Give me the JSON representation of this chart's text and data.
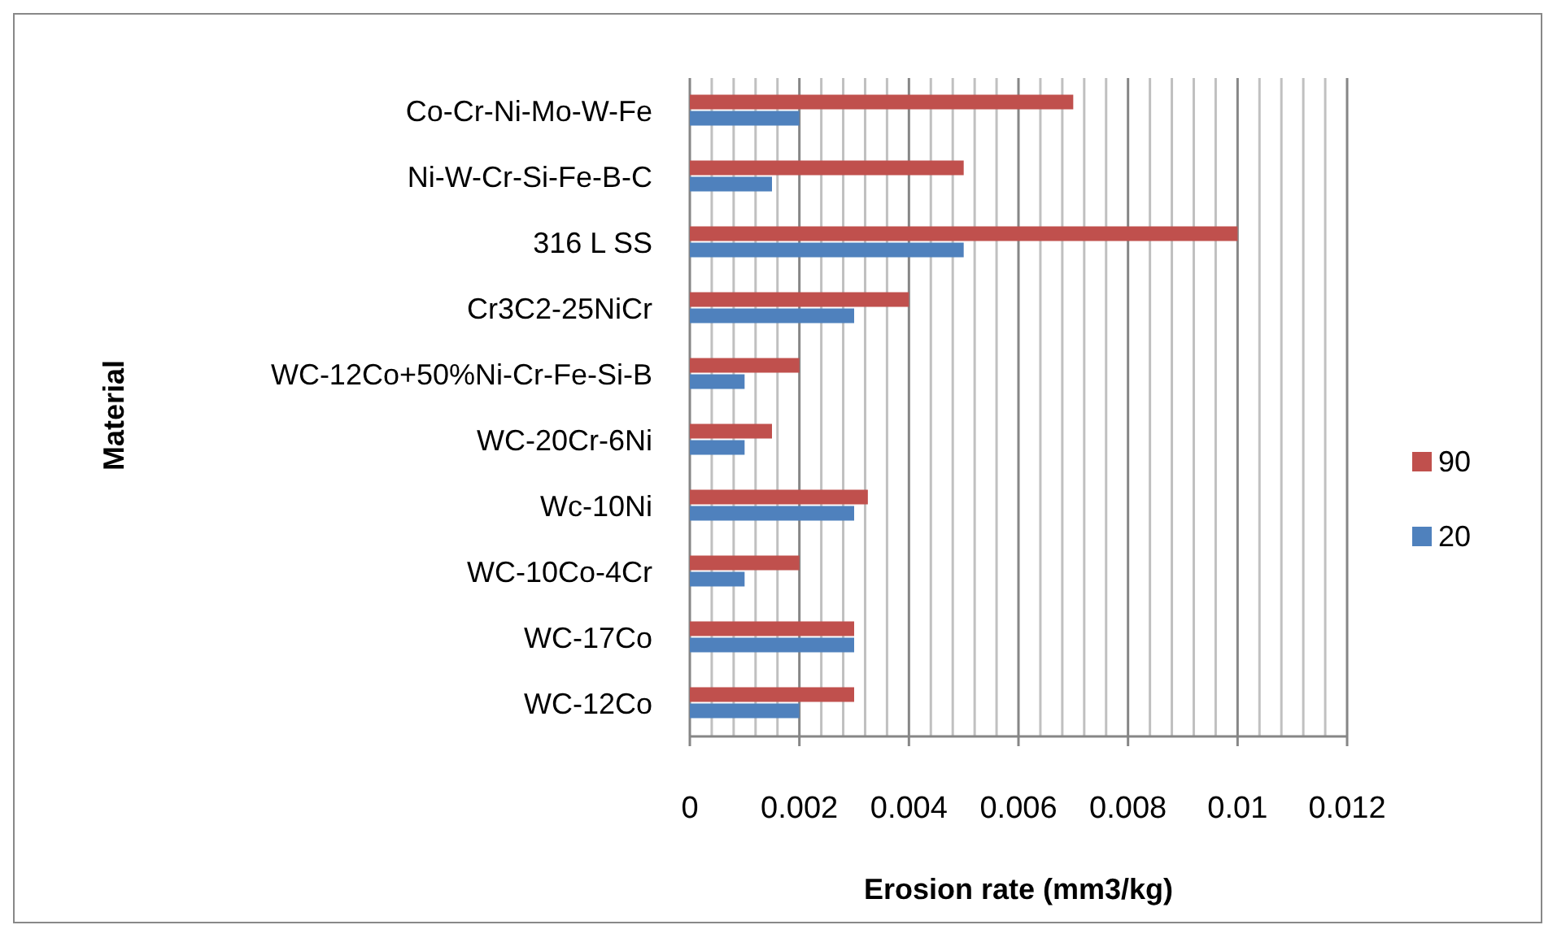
{
  "chart_data": {
    "type": "bar",
    "orientation": "horizontal",
    "xlabel": "Erosion rate (mm3/kg)",
    "ylabel": "Material",
    "categories": [
      "Co-Cr-Ni-Mo-W-Fe",
      "Ni-W-Cr-Si-Fe-B-C",
      "316 L SS",
      "Cr3C2-25NiCr",
      "WC-12Co+50%Ni-Cr-Fe-Si-B",
      "WC-20Cr-6Ni",
      "Wc-10Ni",
      "WC-10Co-4Cr",
      "WC-17Co",
      "WC-12Co"
    ],
    "series": [
      {
        "name": "20",
        "color": "#4f81bd",
        "values": [
          0.002,
          0.0015,
          0.005,
          0.003,
          0.001,
          0.001,
          0.003,
          0.001,
          0.003,
          0.002
        ]
      },
      {
        "name": "90",
        "color": "#c0504d",
        "values": [
          0.007,
          0.005,
          0.01,
          0.004,
          0.002,
          0.0015,
          0.00325,
          0.002,
          0.003,
          0.003
        ]
      }
    ],
    "xlim": [
      0,
      0.012
    ],
    "xticks": [
      0,
      {
        "value": 0.0004,
        "label": null
      },
      {
        "value": 0.0008,
        "label": null
      },
      {
        "value": 0.0012,
        "label": null
      },
      {
        "value": 0.0016,
        "label": null
      },
      0.002,
      {
        "value": 0.0024,
        "label": null
      },
      {
        "value": 0.0028,
        "label": null
      },
      {
        "value": 0.0032,
        "label": null
      },
      {
        "value": 0.0036,
        "label": null
      },
      0.004,
      {
        "value": 0.0044,
        "label": null
      },
      {
        "value": 0.0048,
        "label": null
      },
      {
        "value": 0.0052,
        "label": null
      },
      {
        "value": 0.0056,
        "label": null
      },
      0.006,
      {
        "value": 0.0064,
        "label": null
      },
      {
        "value": 0.0068,
        "label": null
      },
      {
        "value": 0.0072,
        "label": null
      },
      {
        "value": 0.0076,
        "label": null
      },
      0.008,
      {
        "value": 0.0084,
        "label": null
      },
      {
        "value": 0.0088,
        "label": null
      },
      {
        "value": 0.0092,
        "label": null
      },
      {
        "value": 0.0096,
        "label": null
      },
      0.01,
      {
        "value": 0.0104,
        "label": null
      },
      {
        "value": 0.0108,
        "label": null
      },
      {
        "value": 0.0112,
        "label": null
      },
      {
        "value": 0.0116,
        "label": null
      },
      0.012
    ],
    "grid": "x",
    "legend": "right"
  }
}
